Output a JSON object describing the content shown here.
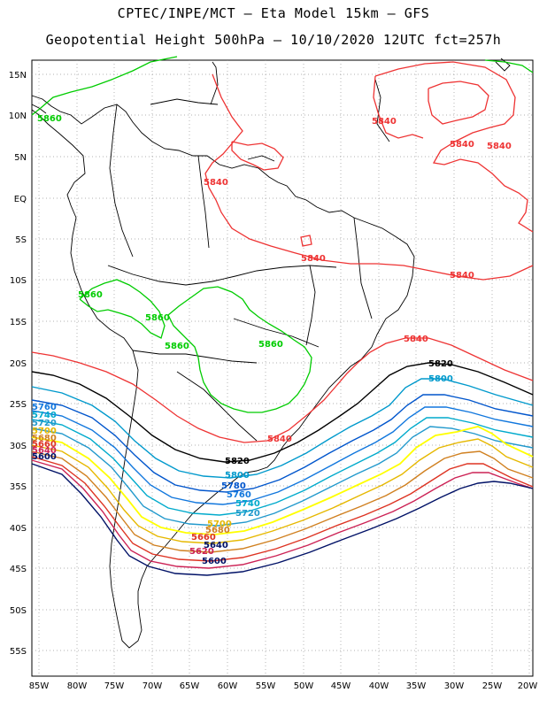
{
  "header": {
    "line1": "CPTEC/INPE/MCT –  Eta Model 15km – GFS",
    "line2": "Geopotential Height 500hPa – 10/10/2020 12UTC fct=257h"
  },
  "axes": {
    "lat_labels": [
      "15N",
      "10N",
      "5N",
      "EQ",
      "5S",
      "10S",
      "15S",
      "20S",
      "25S",
      "30S",
      "35S",
      "40S",
      "45S",
      "50S",
      "55S"
    ],
    "lon_labels": [
      "85W",
      "80W",
      "75W",
      "70W",
      "65W",
      "60W",
      "55W",
      "50W",
      "45W",
      "40W",
      "35W",
      "30W",
      "25W",
      "20W"
    ]
  },
  "contour_labels": {
    "c5840_a": "5840",
    "c5840_b": "5840",
    "c5840_c": "5840",
    "c5840_d": "5840",
    "c5840_e": "5840",
    "c5840_f": "5840",
    "c5840_g": "5840",
    "c5840_h": "5840",
    "c5860_a": "5860",
    "c5860_b": "5860",
    "c5860_c": "5860",
    "c5860_d": "5860",
    "c5860_e": "5860",
    "c5820_a": "5820",
    "c5820_b": "5820",
    "c5800_a": "5800",
    "c5800_b": "5800",
    "c5780": "5780",
    "c5760": "5760",
    "c5740": "5740",
    "c5720": "5720",
    "c5700": "5700",
    "c5680": "5680",
    "c5660": "5660",
    "c5640": "5640",
    "c5620": "5620",
    "c5600": "5600",
    "left_5760": "5760",
    "left_5740": "5740",
    "left_5720": "5720",
    "left_5700": "5700",
    "left_5680": "5680",
    "left_5660": "5660",
    "left_5640": "5640",
    "left_5600": "5600"
  },
  "colors": {
    "c5860": "#00cc00",
    "c5840": "#ee3333",
    "c5820": "#000000",
    "c5800": "#0099cc",
    "c5780": "#0055cc",
    "c5760": "#1177dd",
    "c5740": "#00aacc",
    "c5720": "#2299cc",
    "c5700": "#ffff00",
    "c5680": "#e6b800",
    "c5660": "#d08020",
    "c5640": "#dd3322",
    "c5620": "#cc2255",
    "c5600": "#001166"
  }
}
